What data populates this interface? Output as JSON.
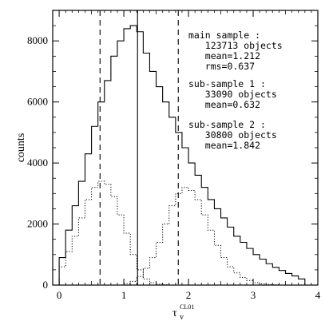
{
  "chart_data": {
    "type": "histogram",
    "xlabel_main": "τ",
    "xlabel_sub": "v",
    "xlabel_sup": "CL01",
    "ylabel": "counts",
    "xlim": [
      -0.1,
      4.0
    ],
    "ylim": [
      0,
      9000
    ],
    "x_ticks": [
      0,
      1,
      2,
      3,
      4
    ],
    "y_ticks": [
      0,
      2000,
      4000,
      6000,
      8000
    ],
    "bin_width": 0.1,
    "bin_edges_start": 0.0,
    "series": [
      {
        "style": "solid",
        "values": [
          900,
          1800,
          2600,
          3400,
          4300,
          5200,
          6000,
          6700,
          7500,
          8000,
          8400,
          8500,
          8300,
          7600,
          7000,
          6500,
          6000,
          5500,
          5000,
          4500,
          4000,
          3600,
          3200,
          2800,
          2500,
          2200,
          1900,
          1600,
          1400,
          1200,
          1000,
          850,
          700,
          580,
          480,
          380,
          300,
          200
        ]
      },
      {
        "style": "dotted",
        "values": [
          600,
          1100,
          1600,
          2200,
          2800,
          3200,
          3400,
          3300,
          2900,
          2300,
          1700,
          1000,
          500,
          200,
          80,
          30,
          10,
          0,
          0,
          0,
          0,
          0,
          0,
          0,
          0,
          0,
          0,
          0,
          0,
          0,
          0,
          0,
          0,
          0,
          0,
          0,
          0,
          0
        ]
      },
      {
        "style": "dotted",
        "values": [
          0,
          0,
          0,
          0,
          0,
          0,
          0,
          0,
          0,
          0,
          50,
          120,
          280,
          550,
          900,
          1400,
          2000,
          2600,
          3000,
          3200,
          3100,
          2800,
          2300,
          1800,
          1300,
          900,
          600,
          400,
          250,
          150,
          80,
          40,
          20,
          10,
          0,
          0,
          0,
          0
        ]
      }
    ],
    "vlines": [
      {
        "x": 0.632,
        "style": "dashed"
      },
      {
        "x": 1.212,
        "style": "solid"
      },
      {
        "x": 1.842,
        "style": "dashed"
      }
    ],
    "annotations": [
      {
        "lines": [
          "main sample :",
          "   123713 objects",
          "   mean=1.212",
          "   rms=0.637"
        ]
      },
      {
        "lines": [
          "sub-sample 1 :",
          "   33090 objects",
          "   mean=0.632"
        ]
      },
      {
        "lines": [
          "sub-sample 2 :",
          "   30800 objects",
          "   mean=1.842"
        ]
      }
    ]
  }
}
